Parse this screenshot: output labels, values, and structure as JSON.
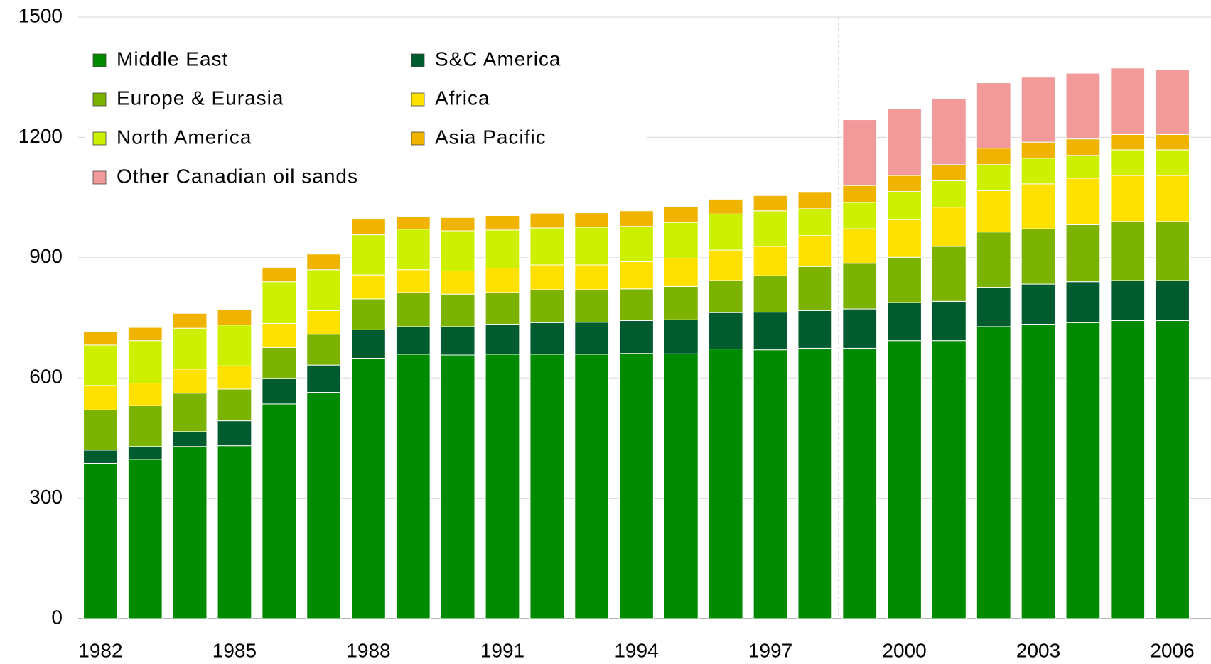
{
  "chart_data": {
    "type": "stacked_bar",
    "categories": [
      "1982",
      null,
      null,
      "1985",
      null,
      null,
      "1988",
      null,
      null,
      "1991",
      null,
      null,
      "1994",
      null,
      null,
      "1997",
      null,
      null,
      "2000",
      null,
      null,
      "2003",
      null,
      null,
      "2006"
    ],
    "series": [
      {
        "name": "Middle East",
        "color": "#008a00",
        "values": [
          387,
          397,
          429,
          431,
          535,
          564,
          649,
          659,
          657,
          659,
          659,
          659,
          661,
          660,
          672,
          670,
          674,
          674,
          693,
          693,
          728,
          734,
          738,
          743,
          743
        ]
      },
      {
        "name": "S&C America",
        "color": "#005c2e",
        "values": [
          33,
          32,
          37,
          62,
          64,
          68,
          71,
          69,
          71,
          75,
          79,
          80,
          82,
          85,
          91,
          94,
          94,
          98,
          95,
          98,
          98,
          100,
          102,
          100,
          100
        ]
      },
      {
        "name": "Europe & Eurasia",
        "color": "#7cb300",
        "values": [
          100,
          102,
          96,
          79,
          77,
          77,
          77,
          85,
          81,
          79,
          82,
          81,
          79,
          83,
          80,
          91,
          110,
          114,
          113,
          137,
          138,
          138,
          142,
          147,
          147
        ]
      },
      {
        "name": "Africa",
        "color": "#ffe100",
        "values": [
          61,
          56,
          60,
          58,
          60,
          59,
          60,
          57,
          58,
          61,
          62,
          62,
          68,
          71,
          76,
          73,
          77,
          86,
          94,
          98,
          103,
          112,
          116,
          115,
          115
        ]
      },
      {
        "name": "North America",
        "color": "#ccf000",
        "values": [
          101,
          106,
          102,
          102,
          104,
          102,
          100,
          101,
          100,
          95,
          92,
          94,
          88,
          89,
          90,
          89,
          67,
          66,
          70,
          66,
          65,
          64,
          57,
          64,
          64
        ]
      },
      {
        "name": "Asia Pacific",
        "color": "#f0b400",
        "values": [
          34,
          33,
          37,
          38,
          36,
          39,
          39,
          32,
          33,
          36,
          37,
          36,
          39,
          40,
          37,
          38,
          41,
          42,
          40,
          40,
          41,
          40,
          41,
          38,
          38
        ]
      },
      {
        "name": "Other Canadian oil sands",
        "color": "#f29a9a",
        "values": [
          0,
          0,
          0,
          0,
          0,
          0,
          0,
          0,
          0,
          0,
          0,
          0,
          0,
          0,
          0,
          0,
          0,
          164,
          166,
          164,
          163,
          162,
          164,
          166,
          162
        ]
      }
    ],
    "ylim": [
      0,
      1500
    ],
    "yticks": [
      0,
      300,
      600,
      900,
      1200,
      1500
    ],
    "grid": true,
    "legend": "top-left"
  }
}
